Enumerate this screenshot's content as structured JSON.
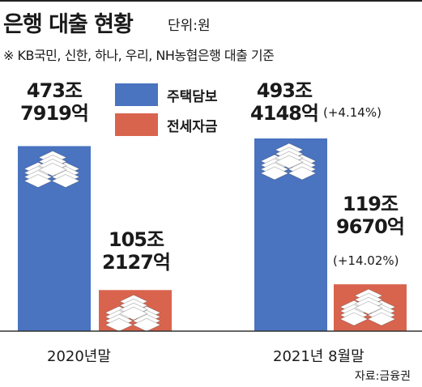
{
  "header": {
    "title": "은행 대출 현황",
    "unit": "단위:원",
    "note": "※ KB국민, 신한, 하나, 우리, NH농협은행 대출 기준"
  },
  "source": "자료:금융권",
  "colors": {
    "mortgage": "#4a73c0",
    "jeonse": "#d9644e",
    "baseline": "#333333"
  },
  "chart_data": {
    "type": "bar",
    "categories": [
      "2020년말",
      "2021년 8월말"
    ],
    "series": [
      {
        "name": "주택담보",
        "values": [
          473.7919,
          493.4148
        ],
        "labels": [
          [
            "473조",
            "7919억"
          ],
          [
            "493조",
            "4148억"
          ]
        ],
        "growth": [
          "",
          "(+4.14%)"
        ]
      },
      {
        "name": "전세자금",
        "values": [
          105.2127,
          119.967
        ],
        "labels": [
          [
            "105조",
            "2127억"
          ],
          [
            "119조",
            "9670억"
          ]
        ],
        "growth": [
          "",
          "(+14.02%)"
        ]
      }
    ]
  }
}
